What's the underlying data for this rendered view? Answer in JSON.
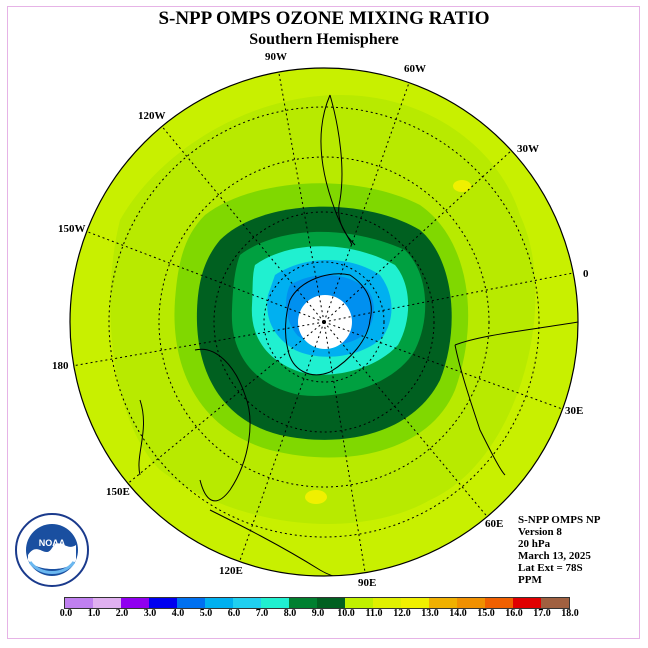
{
  "title": "S-NPP OMPS OZONE MIXING RATIO",
  "subtitle": "Southern Hemisphere",
  "longitude_labels": [
    "90W",
    "60W",
    "30W",
    "0",
    "30E",
    "60E",
    "90E",
    "120E",
    "150E",
    "180",
    "150W",
    "120W"
  ],
  "info": {
    "line1": "S-NPP OMPS NP",
    "line2": "Version 8",
    "line3": "20 hPa",
    "line4": "March 13, 2025",
    "line5": "Lat Ext = 78S",
    "line6": "PPM"
  },
  "logo_text": "NOAA",
  "colorbar": {
    "colors": [
      "#c080f0",
      "#e0b0f0",
      "#f000f0",
      "#9000f0",
      "#0000f0",
      "#0070f0",
      "#0090f0",
      "#00b0f0",
      "#20d0f0",
      "#20f0d0",
      "#00a040",
      "#008030",
      "#006020",
      "#90e000",
      "#c0f000",
      "#e0f000",
      "#f0f000",
      "#f0d000",
      "#f0b000",
      "#f09000",
      "#f06000",
      "#f00000",
      "#e00000",
      "#a06040"
    ],
    "ticks": [
      "0.0",
      "1.0",
      "2.0",
      "3.0",
      "4.0",
      "5.0",
      "6.0",
      "7.0",
      "8.0",
      "9.0",
      "10.0",
      "11.0",
      "12.0",
      "13.0",
      "14.0",
      "15.0",
      "16.0",
      "17.0",
      "18.0"
    ]
  }
}
